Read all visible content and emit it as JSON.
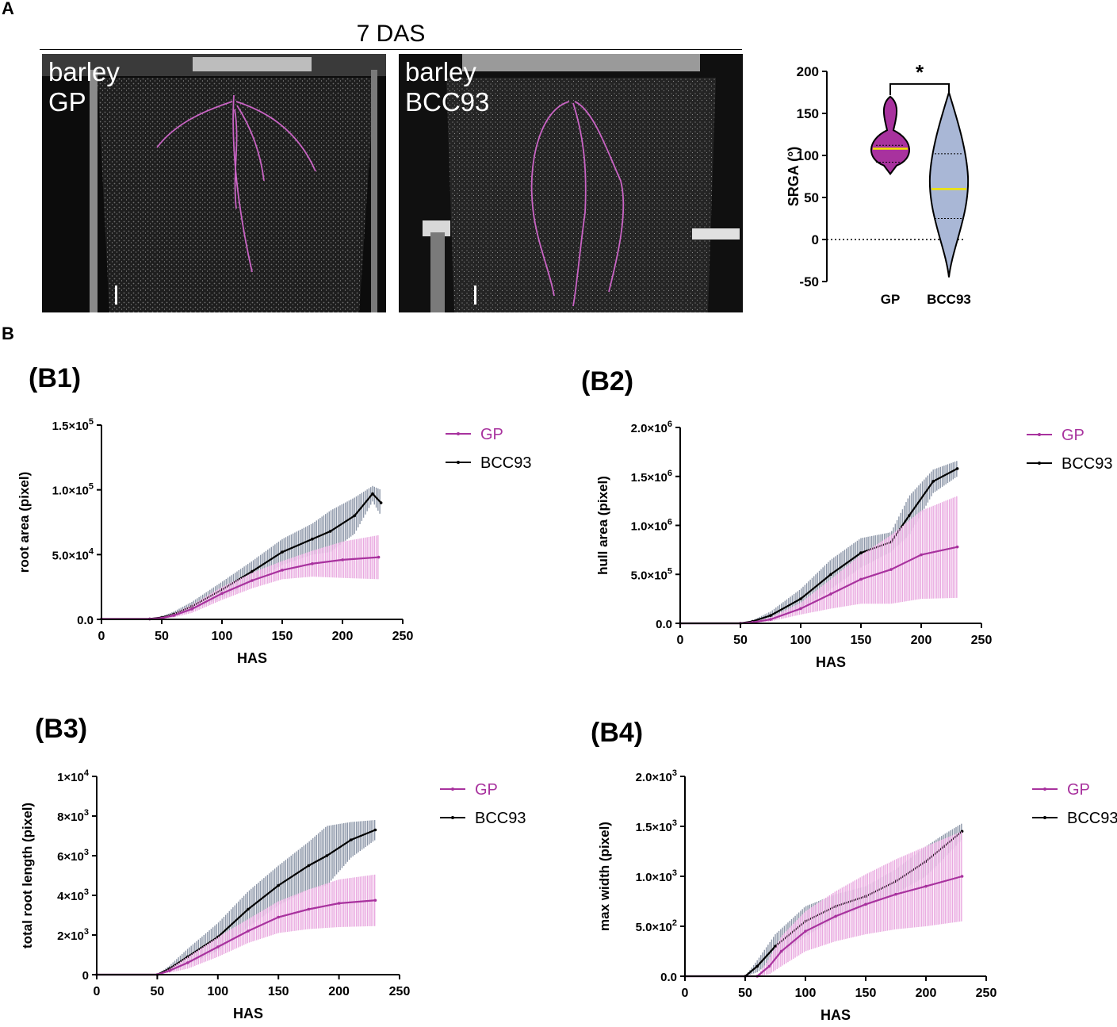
{
  "panel_a": {
    "letter": "A",
    "timepoint": "7 DAS",
    "photos": [
      {
        "line1": "barley",
        "line2": "GP"
      },
      {
        "line1": "barley",
        "line2": "BCC93"
      }
    ]
  },
  "panel_b": {
    "letter": "B"
  },
  "colors": {
    "gp": "#a8329e",
    "gp_fill": "#e9a9e0",
    "bcc93": "#000000",
    "bcc93_fill": "#8c96a8",
    "violin_gp": "#a8329e",
    "violin_bcc": "#a9b7d6",
    "median": "#f2e600"
  },
  "chart_data": [
    {
      "id": "violin",
      "type": "violin",
      "ylabel": "SRGA (°)",
      "ylim": [
        -50,
        200
      ],
      "yticks": [
        "-50",
        "0",
        "50",
        "100",
        "150",
        "200"
      ],
      "categories": [
        "GP",
        "BCC93"
      ],
      "medians": [
        108,
        60
      ],
      "quartiles": [
        [
          92,
          112
        ],
        [
          25,
          102
        ]
      ],
      "range": [
        [
          78,
          170
        ],
        [
          -45,
          175
        ]
      ],
      "reference_line": 0,
      "significance": "*"
    },
    {
      "id": "B1",
      "label": "(B1)",
      "type": "line",
      "xlabel": "HAS",
      "ylabel": "root area (pixel)",
      "xlim": [
        0,
        250
      ],
      "ylim": [
        0,
        150000
      ],
      "xticks": [
        "0",
        "50",
        "100",
        "150",
        "200",
        "250"
      ],
      "yticks": [
        {
          "base": "0.0",
          "exp": ""
        },
        {
          "base": "5.0×10",
          "exp": "4"
        },
        {
          "base": "1.0×10",
          "exp": "5"
        },
        {
          "base": "1.5×10",
          "exp": "5"
        }
      ],
      "legend": [
        "GP",
        "BCC93"
      ],
      "series": [
        {
          "name": "GP",
          "x": [
            0,
            40,
            50,
            60,
            75,
            100,
            125,
            150,
            175,
            200,
            230
          ],
          "y": [
            300,
            300,
            1000,
            3000,
            8000,
            20000,
            30000,
            38000,
            43000,
            46000,
            48000
          ],
          "err": [
            0,
            0,
            500,
            1500,
            3000,
            5000,
            6000,
            7000,
            10000,
            14000,
            17000
          ]
        },
        {
          "name": "BCC93",
          "x": [
            0,
            40,
            50,
            60,
            75,
            100,
            125,
            150,
            175,
            190,
            210,
            225,
            232
          ],
          "y": [
            300,
            300,
            1500,
            4000,
            10000,
            23000,
            37000,
            52000,
            62000,
            68000,
            80000,
            97000,
            90000
          ],
          "err": [
            0,
            0,
            800,
            2000,
            3500,
            6000,
            8000,
            10000,
            12000,
            16000,
            14000,
            6000,
            10000
          ]
        }
      ]
    },
    {
      "id": "B2",
      "label": "(B2)",
      "type": "line",
      "xlabel": "HAS",
      "ylabel": "hull area (pixel)",
      "xlim": [
        0,
        250
      ],
      "ylim": [
        0,
        2000000
      ],
      "xticks": [
        "0",
        "50",
        "100",
        "150",
        "200",
        "250"
      ],
      "yticks": [
        {
          "base": "0.0",
          "exp": ""
        },
        {
          "base": "5.0×10",
          "exp": "5"
        },
        {
          "base": "1.0×10",
          "exp": "6"
        },
        {
          "base": "1.5×10",
          "exp": "6"
        },
        {
          "base": "2.0×10",
          "exp": "6"
        }
      ],
      "legend": [
        "GP",
        "BCC93"
      ],
      "series": [
        {
          "name": "GP",
          "x": [
            0,
            50,
            60,
            75,
            100,
            125,
            150,
            175,
            200,
            230
          ],
          "y": [
            0,
            0,
            10000,
            40000,
            150000,
            300000,
            450000,
            550000,
            700000,
            780000
          ],
          "err": [
            0,
            0,
            5000,
            20000,
            60000,
            150000,
            250000,
            350000,
            450000,
            520000
          ]
        },
        {
          "name": "BCC93",
          "x": [
            0,
            50,
            60,
            75,
            100,
            125,
            150,
            175,
            190,
            210,
            230
          ],
          "y": [
            0,
            0,
            20000,
            80000,
            250000,
            500000,
            720000,
            830000,
            1100000,
            1450000,
            1580000
          ],
          "err": [
            0,
            0,
            10000,
            40000,
            100000,
            150000,
            150000,
            100000,
            200000,
            120000,
            80000
          ]
        }
      ]
    },
    {
      "id": "B3",
      "label": "(B3)",
      "type": "line",
      "xlabel": "HAS",
      "ylabel": "total root length (pixel)",
      "xlim": [
        0,
        250
      ],
      "ylim": [
        0,
        10000
      ],
      "xticks": [
        "0",
        "50",
        "100",
        "150",
        "200",
        "250"
      ],
      "yticks": [
        {
          "base": "0",
          "exp": ""
        },
        {
          "base": "2×10",
          "exp": "3"
        },
        {
          "base": "4×10",
          "exp": "3"
        },
        {
          "base": "6×10",
          "exp": "3"
        },
        {
          "base": "8×10",
          "exp": "3"
        },
        {
          "base": "1×10",
          "exp": "4"
        }
      ],
      "legend": [
        "GP",
        "BCC93"
      ],
      "series": [
        {
          "name": "GP",
          "x": [
            0,
            50,
            60,
            75,
            100,
            125,
            150,
            175,
            200,
            230
          ],
          "y": [
            0,
            0,
            200,
            600,
            1400,
            2200,
            2900,
            3300,
            3600,
            3750
          ],
          "err": [
            0,
            0,
            100,
            300,
            500,
            600,
            800,
            1000,
            1200,
            1300
          ]
        },
        {
          "name": "BCC93",
          "x": [
            0,
            50,
            60,
            75,
            100,
            125,
            150,
            175,
            190,
            210,
            230
          ],
          "y": [
            0,
            0,
            300,
            900,
            1900,
            3300,
            4500,
            5500,
            6000,
            6800,
            7300
          ],
          "err": [
            0,
            0,
            150,
            400,
            700,
            900,
            1000,
            1200,
            1500,
            900,
            500
          ]
        }
      ]
    },
    {
      "id": "B4",
      "label": "(B4)",
      "type": "line",
      "xlabel": "HAS",
      "ylabel": "max width (pixel)",
      "xlim": [
        0,
        250
      ],
      "ylim": [
        0,
        2000
      ],
      "xticks": [
        "0",
        "50",
        "100",
        "150",
        "200",
        "250"
      ],
      "yticks": [
        {
          "base": "0.0",
          "exp": ""
        },
        {
          "base": "5.0×10",
          "exp": "2"
        },
        {
          "base": "1.0×10",
          "exp": "3"
        },
        {
          "base": "1.5×10",
          "exp": "3"
        },
        {
          "base": "2.0×10",
          "exp": "3"
        }
      ],
      "legend": [
        "GP",
        "BCC93"
      ],
      "series": [
        {
          "name": "GP",
          "x": [
            0,
            60,
            70,
            80,
            100,
            125,
            150,
            175,
            200,
            230
          ],
          "y": [
            0,
            0,
            100,
            250,
            450,
            600,
            720,
            820,
            900,
            1000
          ],
          "err": [
            0,
            0,
            80,
            150,
            200,
            250,
            300,
            350,
            400,
            450
          ]
        },
        {
          "name": "BCC93",
          "x": [
            0,
            50,
            60,
            75,
            100,
            125,
            150,
            175,
            200,
            215,
            230
          ],
          "y": [
            0,
            0,
            100,
            300,
            550,
            700,
            800,
            950,
            1150,
            1300,
            1450
          ],
          "err": [
            0,
            0,
            60,
            120,
            150,
            120,
            100,
            120,
            150,
            120,
            80
          ]
        }
      ]
    }
  ]
}
